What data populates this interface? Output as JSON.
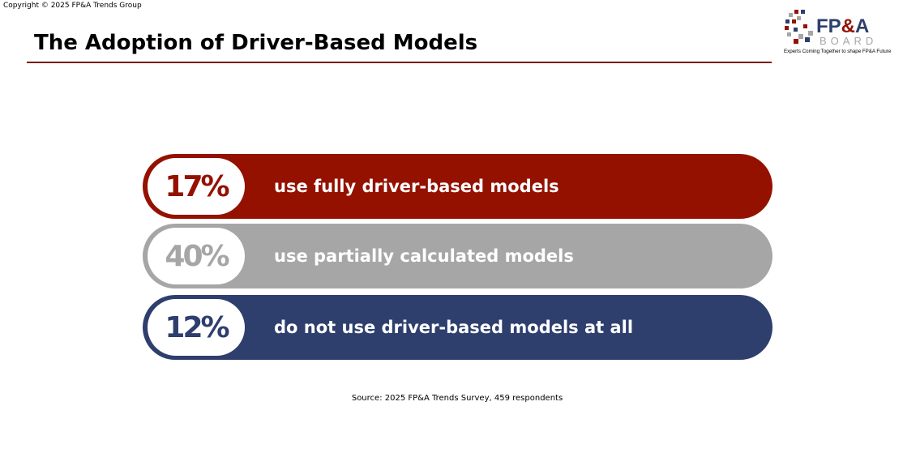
{
  "copyright": "Copyright © 2025 FP&A Trends Group",
  "title": "The Adoption of Driver-Based Models",
  "logo": {
    "name": "FP&A BOARD",
    "tagline": "Experts Coming Together to shape FP&A Future"
  },
  "stats": [
    {
      "value": "17%",
      "label": "use fully driver-based models",
      "color": "#941100"
    },
    {
      "value": "40%",
      "label": "use partially calculated models",
      "color": "#a6a6a6"
    },
    {
      "value": "12%",
      "label": "do not use driver-based models at all",
      "color": "#2e3f6e"
    }
  ],
  "source": "Source: 2025 FP&A Trends Survey, 459 respondents"
}
